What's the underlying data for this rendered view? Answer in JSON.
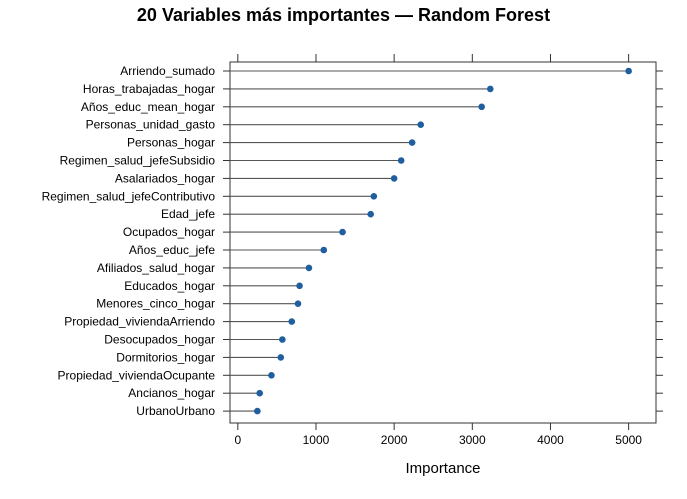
{
  "chart_data": {
    "type": "scatter",
    "title": "20 Variables más importantes — Random Forest",
    "xlabel": "Importance",
    "ylabel": "",
    "xlim": [
      -100,
      5350
    ],
    "xticks": [
      0,
      1000,
      2000,
      3000,
      4000,
      5000
    ],
    "tick_labels": [
      "0",
      "1000",
      "2000",
      "3000",
      "4000",
      "5000"
    ],
    "point_color": "#1f5fa0",
    "line_color": "#555555",
    "grid": false,
    "categories": [
      "Arriendo_sumado",
      "Horas_trabajadas_hogar",
      "Años_educ_mean_hogar",
      "Personas_unidad_gasto",
      "Personas_hogar",
      "Regimen_salud_jefeSubsidio",
      "Asalariados_hogar",
      "Regimen_salud_jefeContributivo",
      "Edad_jefe",
      "Ocupados_hogar",
      "Años_educ_jefe",
      "Afiliados_salud_hogar",
      "Educados_hogar",
      "Menores_cinco_hogar",
      "Propiedad_viviendaArriendo",
      "Desocupados_hogar",
      "Dormitorios_hogar",
      "Propiedad_viviendaOcupante",
      "Ancianos_hogar",
      "UrbanoUrbano"
    ],
    "values": [
      5000,
      3230,
      3120,
      2340,
      2230,
      2090,
      2000,
      1740,
      1700,
      1340,
      1100,
      910,
      790,
      770,
      690,
      570,
      550,
      430,
      280,
      250
    ]
  }
}
